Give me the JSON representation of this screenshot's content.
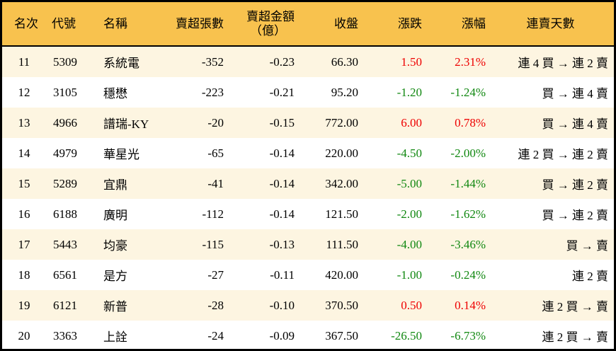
{
  "headers": {
    "rank": "名次",
    "code": "代號",
    "name": "名稱",
    "net_sell_volume": "賣超張數",
    "net_sell_amount": "賣超金額",
    "net_sell_amount_unit": "（億）",
    "close": "收盤",
    "change": "漲跌",
    "change_pct": "漲幅",
    "streak": "連賣天數"
  },
  "colors": {
    "header_bg": "#f8c24e",
    "alt_row_bg": "#fdf5e1",
    "up": "#ee0000",
    "down": "#118811"
  },
  "rows": [
    {
      "rank": "11",
      "code": "5309",
      "name": "系統電",
      "volume": "-352",
      "amount": "-0.23",
      "close": "66.30",
      "change": "1.50",
      "pct": "2.31%",
      "streak": "連 4 買 → 連 2 賣",
      "dir": "up"
    },
    {
      "rank": "12",
      "code": "3105",
      "name": "穩懋",
      "volume": "-223",
      "amount": "-0.21",
      "close": "95.20",
      "change": "-1.20",
      "pct": "-1.24%",
      "streak": "買 → 連 4 賣",
      "dir": "down"
    },
    {
      "rank": "13",
      "code": "4966",
      "name": "譜瑞-KY",
      "volume": "-20",
      "amount": "-0.15",
      "close": "772.00",
      "change": "6.00",
      "pct": "0.78%",
      "streak": "買 → 連 4 賣",
      "dir": "up"
    },
    {
      "rank": "14",
      "code": "4979",
      "name": "華星光",
      "volume": "-65",
      "amount": "-0.14",
      "close": "220.00",
      "change": "-4.50",
      "pct": "-2.00%",
      "streak": "連 2 買 → 連 2 賣",
      "dir": "down"
    },
    {
      "rank": "15",
      "code": "5289",
      "name": "宜鼎",
      "volume": "-41",
      "amount": "-0.14",
      "close": "342.00",
      "change": "-5.00",
      "pct": "-1.44%",
      "streak": "買 → 連 2 賣",
      "dir": "down"
    },
    {
      "rank": "16",
      "code": "6188",
      "name": "廣明",
      "volume": "-112",
      "amount": "-0.14",
      "close": "121.50",
      "change": "-2.00",
      "pct": "-1.62%",
      "streak": "買 → 連 2 賣",
      "dir": "down"
    },
    {
      "rank": "17",
      "code": "5443",
      "name": "均豪",
      "volume": "-115",
      "amount": "-0.13",
      "close": "111.50",
      "change": "-4.00",
      "pct": "-3.46%",
      "streak": "買 → 賣",
      "dir": "down"
    },
    {
      "rank": "18",
      "code": "6561",
      "name": "是方",
      "volume": "-27",
      "amount": "-0.11",
      "close": "420.00",
      "change": "-1.00",
      "pct": "-0.24%",
      "streak": "連 2 賣",
      "dir": "down"
    },
    {
      "rank": "19",
      "code": "6121",
      "name": "新普",
      "volume": "-28",
      "amount": "-0.10",
      "close": "370.50",
      "change": "0.50",
      "pct": "0.14%",
      "streak": "連 2 買 → 賣",
      "dir": "up"
    },
    {
      "rank": "20",
      "code": "3363",
      "name": "上詮",
      "volume": "-24",
      "amount": "-0.09",
      "close": "367.50",
      "change": "-26.50",
      "pct": "-6.73%",
      "streak": "連 2 買 → 賣",
      "dir": "down"
    }
  ]
}
